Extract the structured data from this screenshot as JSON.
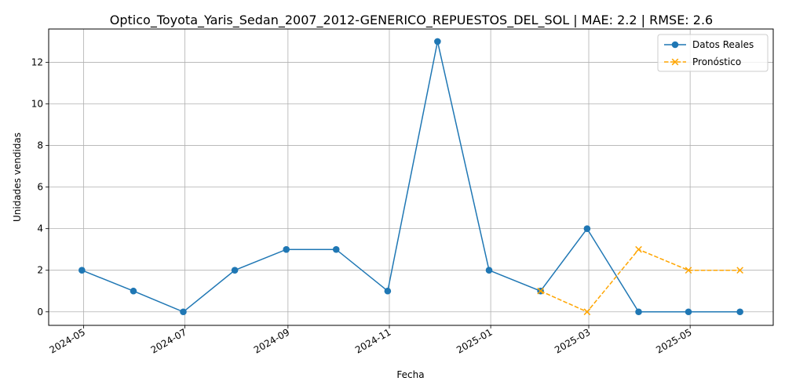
{
  "chart_data": {
    "type": "line",
    "title": "Optico_Toyota_Yaris_Sedan_2007_2012-GENERICO_REPUESTOS_DEL_SOL | MAE: 2.2 | RMSE: 2.6",
    "xlabel": "Fecha",
    "ylabel": "Unidades vendidas",
    "x_ticks": [
      "2024-05",
      "2024-07",
      "2024-09",
      "2024-11",
      "2025-01",
      "2025-03",
      "2025-05"
    ],
    "y_ticks": [
      0,
      2,
      4,
      6,
      8,
      10,
      12
    ],
    "ylim": [
      -0.65,
      13.6
    ],
    "xlim": [
      "2024-04-10",
      "2025-06-20"
    ],
    "grid": true,
    "legend_position": "top-right",
    "series": [
      {
        "name": "Datos Reales",
        "color": "#1f77b4",
        "marker": "circle",
        "line_style": "solid",
        "x": [
          "2024-04-30",
          "2024-05-31",
          "2024-06-30",
          "2024-07-31",
          "2024-08-31",
          "2024-09-30",
          "2024-10-31",
          "2024-11-30",
          "2024-12-31",
          "2025-01-31",
          "2025-02-28",
          "2025-03-31",
          "2025-04-30",
          "2025-05-31"
        ],
        "y": [
          2,
          1,
          0,
          2,
          3,
          3,
          1,
          13,
          2,
          1,
          4,
          0,
          0,
          0
        ]
      },
      {
        "name": "Pronóstico",
        "color": "#ffa500",
        "marker": "x",
        "line_style": "dashed",
        "x": [
          "2025-01-31",
          "2025-02-28",
          "2025-03-31",
          "2025-04-30",
          "2025-05-31"
        ],
        "y": [
          1,
          0,
          3,
          2,
          2
        ]
      }
    ]
  }
}
